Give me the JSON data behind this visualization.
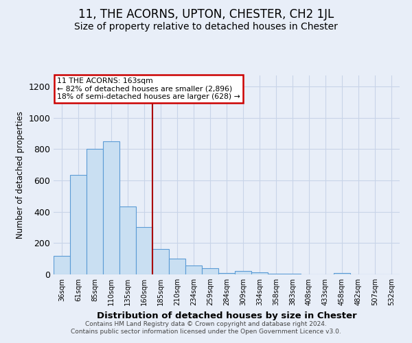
{
  "title": "11, THE ACORNS, UPTON, CHESTER, CH2 1JL",
  "subtitle": "Size of property relative to detached houses in Chester",
  "xlabel": "Distribution of detached houses by size in Chester",
  "ylabel": "Number of detached properties",
  "categories": [
    "36sqm",
    "61sqm",
    "85sqm",
    "110sqm",
    "135sqm",
    "160sqm",
    "185sqm",
    "210sqm",
    "234sqm",
    "259sqm",
    "284sqm",
    "309sqm",
    "334sqm",
    "358sqm",
    "383sqm",
    "408sqm",
    "433sqm",
    "458sqm",
    "482sqm",
    "507sqm",
    "532sqm"
  ],
  "values": [
    120,
    635,
    800,
    850,
    435,
    300,
    160,
    100,
    55,
    40,
    10,
    20,
    15,
    5,
    5,
    2,
    2,
    10,
    0,
    0,
    0
  ],
  "bar_color": "#c9dff2",
  "bar_edge_color": "#5b9bd5",
  "vline_x_index": 5.5,
  "vline_color": "#aa0000",
  "annotation_text": "11 THE ACORNS: 163sqm\n← 82% of detached houses are smaller (2,896)\n18% of semi-detached houses are larger (628) →",
  "annotation_box_color": "#ffffff",
  "annotation_box_edge": "#cc0000",
  "ylim": [
    0,
    1270
  ],
  "yticks": [
    0,
    200,
    400,
    600,
    800,
    1000,
    1200
  ],
  "footer": "Contains HM Land Registry data © Crown copyright and database right 2024.\nContains public sector information licensed under the Open Government Licence v3.0.",
  "title_fontsize": 12,
  "subtitle_fontsize": 10,
  "bar_width": 1.0,
  "grid_color": "#c8d4e8",
  "bg_color": "#e8eef8"
}
